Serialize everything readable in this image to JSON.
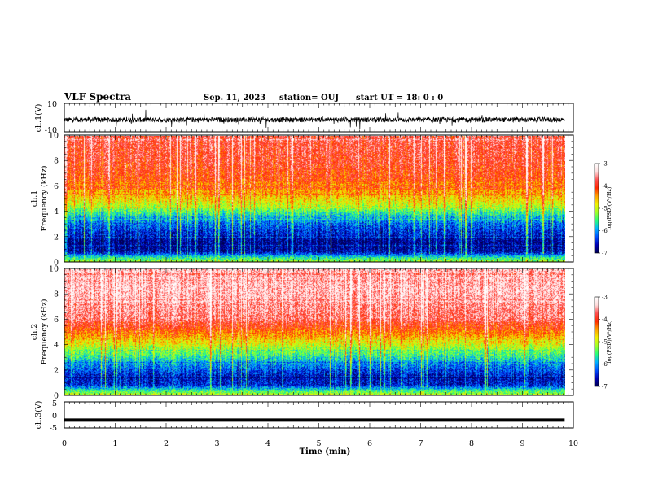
{
  "header": {
    "title": "VLF Spectra",
    "date": "Sep. 11, 2023",
    "station": "station= OUJ",
    "start": "start  UT =   18: 0  : 0"
  },
  "colors": {
    "colormap": [
      "#000050",
      "#0000b4",
      "#0050ff",
      "#00b4ff",
      "#28ff78",
      "#a0ff28",
      "#f0f000",
      "#ffa000",
      "#ff2800",
      "#ff5050",
      "#ffdcdc",
      "#ffffff"
    ]
  },
  "chart_data": [
    {
      "type": "line",
      "name": "ch1-waveform",
      "ylabel": "ch.1(V)",
      "ylim": [
        -10,
        10
      ],
      "yticks": [
        "10",
        "-10"
      ],
      "x_unit": "min",
      "xlim": [
        0,
        10
      ],
      "data_extent_min": 9.83,
      "baseline": -1.5,
      "noise_amplitude": 3.5
    },
    {
      "type": "heatmap",
      "name": "ch1-spectrogram",
      "ylabel": "ch.1\nFrequency (kHz)",
      "ylabel_line1": "ch.1",
      "ylabel_line2": "Frequency (kHz)",
      "ylim": [
        0,
        10
      ],
      "yticks": [
        "0",
        "2",
        "4",
        "6",
        "8",
        "10"
      ],
      "xlim": [
        0,
        10
      ],
      "data_extent_min": 9.83,
      "colorbar": {
        "label": "log(PSD)(V²/Hz)",
        "ticks": [
          "-3",
          "-4",
          "-5",
          "-6",
          "-7"
        ],
        "range": [
          -7,
          -3
        ]
      },
      "profile_freq_khz": [
        0,
        0.3,
        0.8,
        1.5,
        2.5,
        3.5,
        4.5,
        6,
        8,
        10
      ],
      "profile_log_psd": [
        -5.2,
        -5.6,
        -6.7,
        -6.8,
        -6.4,
        -5.9,
        -5.0,
        -4.2,
        -3.9,
        -3.8
      ]
    },
    {
      "type": "heatmap",
      "name": "ch2-spectrogram",
      "ylabel": "ch.2\nFrequency (kHz)",
      "ylabel_line1": "ch.2",
      "ylabel_line2": "Frequency (kHz)",
      "ylim": [
        0,
        10
      ],
      "yticks": [
        "0",
        "2",
        "4",
        "6",
        "8",
        "10"
      ],
      "xlim": [
        0,
        10
      ],
      "data_extent_min": 9.83,
      "colorbar": {
        "label": "log(PSD)(V²/Hz)",
        "ticks": [
          "-3",
          "-4",
          "-5",
          "-6",
          "-7"
        ],
        "range": [
          -7,
          -3
        ]
      },
      "profile_freq_khz": [
        0,
        0.3,
        0.8,
        1.5,
        2.5,
        3.5,
        4.5,
        6,
        8,
        10
      ],
      "profile_log_psd": [
        -5.0,
        -5.5,
        -6.5,
        -6.6,
        -6.0,
        -5.3,
        -4.6,
        -3.7,
        -3.4,
        -3.4
      ]
    },
    {
      "type": "line",
      "name": "ch3-waveform",
      "ylabel": "ch.3(V)",
      "ylim": [
        -5,
        5
      ],
      "yticks": [
        "5",
        "0",
        "-5"
      ],
      "xlim": [
        0,
        10
      ],
      "data_extent_min": 9.83,
      "baseline": -2.0
    }
  ],
  "xaxis": {
    "label": "Time  (min)",
    "ticks": [
      "0",
      "1",
      "2",
      "3",
      "4",
      "5",
      "6",
      "7",
      "8",
      "9",
      "10"
    ]
  }
}
